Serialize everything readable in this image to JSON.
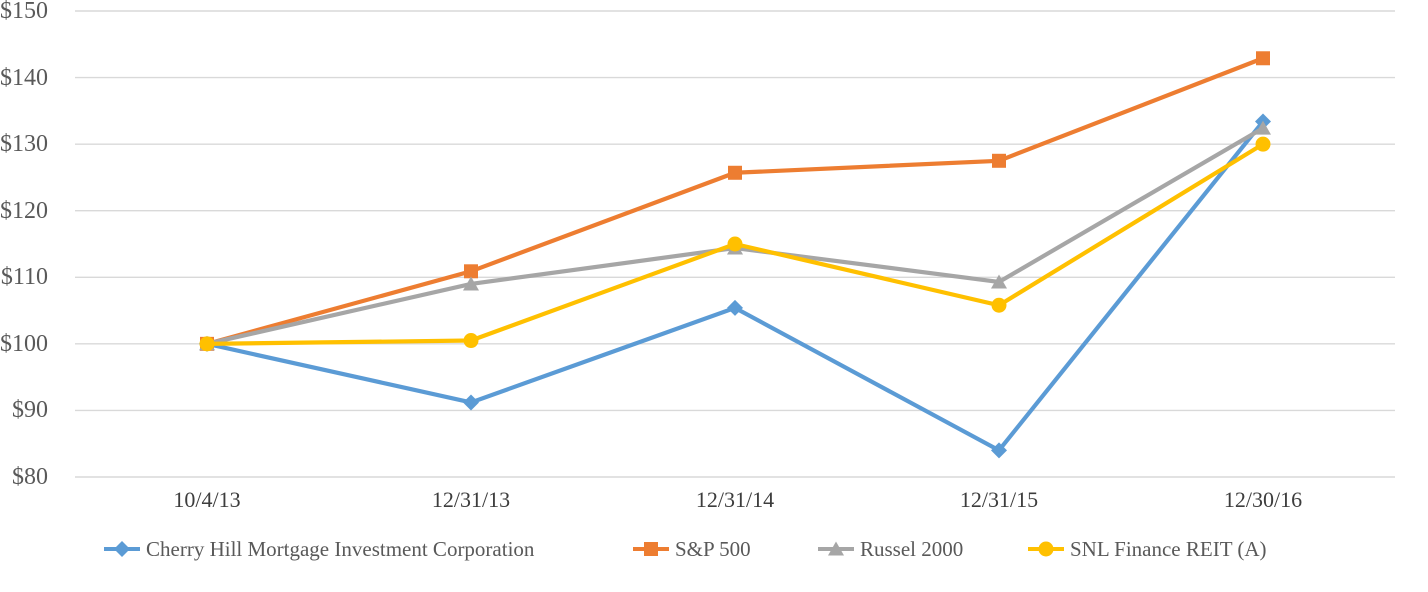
{
  "colors": {
    "background": "#ffffff",
    "gridline": "#d9d9d9",
    "y_tick_text": "#595959",
    "x_tick_text": "#3d3d3d",
    "legend_text": "#595959",
    "series_blue": "#5b9bd5",
    "series_orange": "#ed7d31",
    "series_gray": "#a6a6a6",
    "series_yellow": "#ffc000"
  },
  "chart_data": {
    "type": "line",
    "title": "",
    "xlabel": "",
    "ylabel": "",
    "grid": true,
    "legend_position": "bottom",
    "ylim": [
      80,
      150
    ],
    "x_categories": [
      "10/4/13",
      "12/31/13",
      "12/31/14",
      "12/31/15",
      "12/30/16"
    ],
    "y_axis": {
      "min": 80,
      "max": 150,
      "step": 10,
      "ticks": [
        {
          "label": "$150",
          "value": 150
        },
        {
          "label": "$140",
          "value": 140
        },
        {
          "label": "$130",
          "value": 130
        },
        {
          "label": "$120",
          "value": 120
        },
        {
          "label": "$110",
          "value": 110
        },
        {
          "label": "$100",
          "value": 100
        },
        {
          "label": "$90",
          "value": 90
        },
        {
          "label": "$80",
          "value": 80
        }
      ]
    },
    "series": [
      {
        "name": "Cherry Hill Mortgage Investment Corporation",
        "color": "#5b9bd5",
        "marker": "diamond",
        "values": [
          100,
          91.2,
          105.4,
          84.0,
          133.4
        ]
      },
      {
        "name": "S&P 500",
        "color": "#ed7d31",
        "marker": "square",
        "values": [
          100,
          110.9,
          125.7,
          127.5,
          142.9
        ]
      },
      {
        "name": "Russel 2000",
        "color": "#a6a6a6",
        "marker": "triangle",
        "values": [
          100,
          109.0,
          114.4,
          109.3,
          132.4
        ]
      },
      {
        "name": "SNL Finance REIT (A)",
        "color": "#ffc000",
        "marker": "circle",
        "values": [
          100,
          100.5,
          115.0,
          105.8,
          130.0
        ]
      }
    ]
  }
}
